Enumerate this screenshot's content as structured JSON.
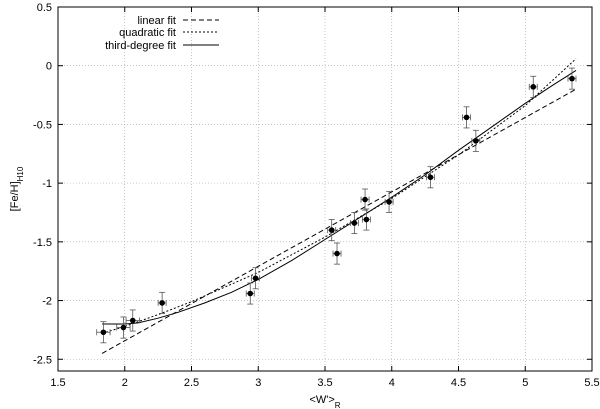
{
  "chart_data": {
    "type": "scatter",
    "xlabel": "<W'>",
    "xlabel_sub": "R",
    "ylabel": "[Fe/H]",
    "ylabel_sub": "H10",
    "xlim": [
      1.5,
      5.5
    ],
    "ylim": [
      -2.6,
      0.5
    ],
    "xticks": [
      1.5,
      2,
      2.5,
      3,
      3.5,
      4,
      4.5,
      5,
      5.5
    ],
    "yticks": [
      -2.5,
      -2,
      -1.5,
      -1,
      -0.5,
      0,
      0.5
    ],
    "grid": true,
    "legend_position": "top-left",
    "points": [
      {
        "x": 1.84,
        "y": -2.27,
        "xerr": 0.05,
        "yerr": 0.09
      },
      {
        "x": 1.99,
        "y": -2.23,
        "xerr": 0.05,
        "yerr": 0.09
      },
      {
        "x": 2.06,
        "y": -2.17,
        "xerr": 0.05,
        "yerr": 0.09
      },
      {
        "x": 2.28,
        "y": -2.02,
        "xerr": 0.03,
        "yerr": 0.09
      },
      {
        "x": 2.94,
        "y": -1.94,
        "xerr": 0.03,
        "yerr": 0.09
      },
      {
        "x": 2.98,
        "y": -1.81,
        "xerr": 0.03,
        "yerr": 0.09
      },
      {
        "x": 3.55,
        "y": -1.4,
        "xerr": 0.03,
        "yerr": 0.09
      },
      {
        "x": 3.59,
        "y": -1.6,
        "xerr": 0.03,
        "yerr": 0.09
      },
      {
        "x": 3.72,
        "y": -1.34,
        "xerr": 0.03,
        "yerr": 0.09
      },
      {
        "x": 3.8,
        "y": -1.14,
        "xerr": 0.03,
        "yerr": 0.09
      },
      {
        "x": 3.81,
        "y": -1.31,
        "xerr": 0.03,
        "yerr": 0.09
      },
      {
        "x": 3.98,
        "y": -1.16,
        "xerr": 0.03,
        "yerr": 0.09
      },
      {
        "x": 4.29,
        "y": -0.95,
        "xerr": 0.03,
        "yerr": 0.09
      },
      {
        "x": 4.56,
        "y": -0.44,
        "xerr": 0.03,
        "yerr": 0.09
      },
      {
        "x": 4.63,
        "y": -0.64,
        "xerr": 0.03,
        "yerr": 0.09
      },
      {
        "x": 5.06,
        "y": -0.18,
        "xerr": 0.03,
        "yerr": 0.09
      },
      {
        "x": 5.35,
        "y": -0.11,
        "xerr": 0.03,
        "yerr": 0.09
      }
    ],
    "series": [
      {
        "name": "linear fit",
        "style": "dashed",
        "x": [
          1.83,
          5.38
        ],
        "y": [
          -2.45,
          -0.2
        ]
      },
      {
        "name": "quadratic fit",
        "style": "dotted",
        "x": [
          1.83,
          2.0,
          2.25,
          2.5,
          3.0,
          3.5,
          4.0,
          4.5,
          5.0,
          5.38
        ],
        "y": [
          -2.28,
          -2.22,
          -2.12,
          -2.01,
          -1.76,
          -1.46,
          -1.13,
          -0.76,
          -0.34,
          0.06
        ]
      },
      {
        "name": "third-degree fit",
        "style": "solid",
        "x": [
          1.83,
          2.0,
          2.1,
          2.25,
          2.4,
          2.6,
          2.8,
          3.0,
          3.25,
          3.5,
          3.75,
          4.0,
          4.25,
          4.5,
          4.75,
          5.0,
          5.2,
          5.38
        ],
        "y": [
          -2.2,
          -2.2,
          -2.19,
          -2.15,
          -2.1,
          -2.02,
          -1.93,
          -1.82,
          -1.66,
          -1.48,
          -1.3,
          -1.12,
          -0.93,
          -0.72,
          -0.52,
          -0.32,
          -0.17,
          -0.04
        ]
      }
    ]
  }
}
